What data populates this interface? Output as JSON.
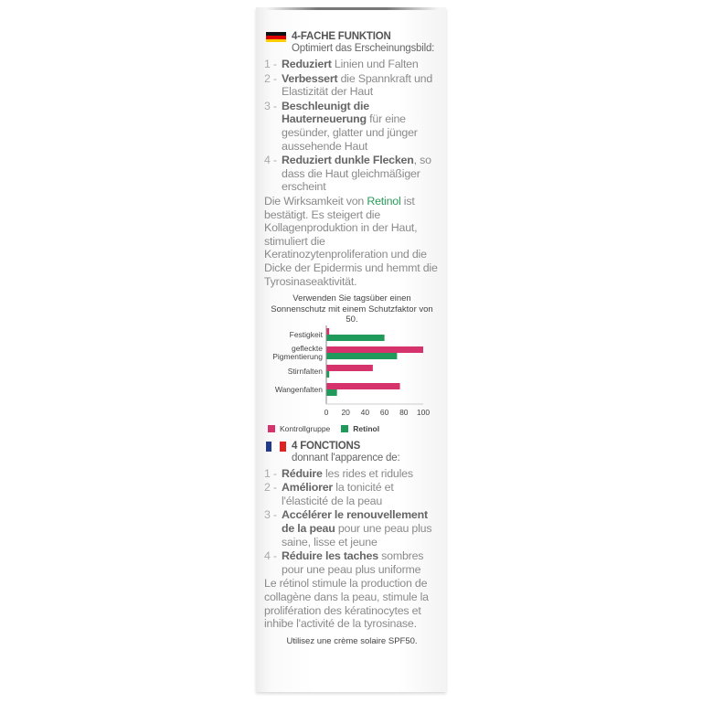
{
  "german": {
    "title": "4-FACHE FUNKTION",
    "subtitle": "Optimiert das Erscheinungsbild:",
    "items": [
      {
        "num": "1 -",
        "bold": "Reduziert",
        "text": " Linien und Falten"
      },
      {
        "num": "2 -",
        "bold": "Verbessert",
        "text": " die Spannkraft und Elastizität der Haut"
      },
      {
        "num": "3 -",
        "bold": "Beschleunigt die Hauterneuerung",
        "text": " für eine gesünder, glatter und jünger aussehende Haut"
      },
      {
        "num": "4 -",
        "bold": "Reduziert dunkle Flecken",
        "text": ", so dass die Haut gleichmäßiger erscheint"
      }
    ],
    "para_before": "Die Wirksamkeit von ",
    "para_highlight": "Retinol",
    "para_after": " ist bestätigt. Es steigert die Kollagenproduktion in der Haut, stimuliert die Keratinozytenproliferation und die Dicke der Epidermis und hemmt die Tyrosinaseaktivität."
  },
  "chart_data": {
    "type": "bar",
    "orientation": "horizontal",
    "title": "Verwenden Sie tagsüber einen Sonnenschutz mit einem Schutzfaktor von 50.",
    "categories": [
      "Festigkeit",
      "gefleckte Pigmentierung",
      "Stirnfalten",
      "Wangenfalten"
    ],
    "series": [
      {
        "name": "Kontrollgruppe",
        "values": [
          3,
          100,
          48,
          76
        ],
        "color": "#d6336c"
      },
      {
        "name": "Retinol",
        "values": [
          60,
          73,
          3,
          11
        ],
        "color": "#1f9a5a"
      }
    ],
    "xlim": [
      0,
      100
    ],
    "xticks": [
      "0",
      "20",
      "40",
      "60",
      "80",
      "100"
    ],
    "legend": "bottom"
  },
  "french": {
    "title": "4 FONCTIONS",
    "subtitle": "donnant l'apparence de:",
    "items": [
      {
        "num": "1 -",
        "bold": "Réduire",
        "text": " les rides et ridules"
      },
      {
        "num": "2 -",
        "bold": "Améliorer",
        "text": " la tonicité et l'élasticité de la peau"
      },
      {
        "num": "3 -",
        "bold": "Accélérer le renouvellement de la peau",
        "text": " pour une peau plus saine, lisse et jeune"
      },
      {
        "num": "4 -",
        "bold": "Réduire les taches",
        "text": " sombres pour une peau plus uniforme"
      }
    ],
    "para": "Le rétinol stimule la production de collagène dans la peau, stimule la prolifération des kératinocytes et inhibe l'activité de la tyrosinase.",
    "footer": "Utilisez une crème solaire SPF50."
  }
}
